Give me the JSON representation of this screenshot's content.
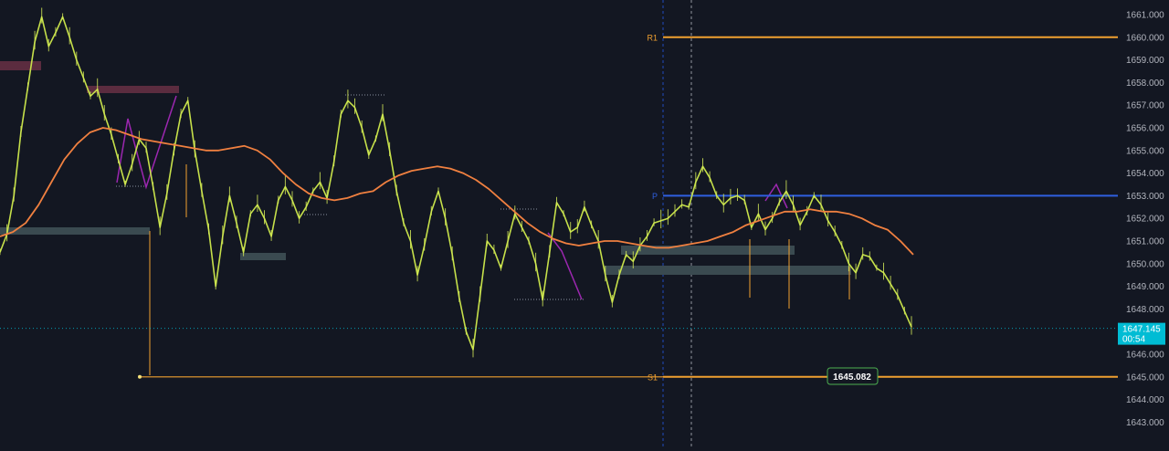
{
  "chart_data": {
    "type": "line",
    "title": "",
    "ylim": [
      1642.0,
      1661.4
    ],
    "y_ticks": [
      "1643.000",
      "1644.000",
      "1645.000",
      "1646.000",
      "1647.000",
      "1648.000",
      "1649.000",
      "1650.000",
      "1651.000",
      "1652.000",
      "1653.000",
      "1654.000",
      "1655.000",
      "1656.000",
      "1657.000",
      "1658.000",
      "1659.000",
      "1660.000",
      "1661.000"
    ],
    "grid": false,
    "levels": [
      {
        "label": "R1",
        "value": 1660.0,
        "color": "#f0a030"
      },
      {
        "label": "P",
        "value": 1653.0,
        "color": "#2f5fe0"
      },
      {
        "label": "S1",
        "value": 1645.0,
        "color": "#f0a030"
      }
    ],
    "s1_value_label": "1645.082",
    "last_price": {
      "value": 1647.145,
      "label": "1647.145",
      "countdown": "00:54",
      "color": "#00bcd4"
    },
    "series": [
      {
        "color": "#c6e04a",
        "values": [
          1650.5,
          1651.3,
          1653.0,
          1655.8,
          1657.8,
          1659.8,
          1660.9,
          1659.6,
          1660.2,
          1660.9,
          1660.0,
          1659.0,
          1658.2,
          1657.4,
          1657.7,
          1656.6,
          1655.7,
          1654.6,
          1653.5,
          1654.4,
          1655.5,
          1655.1,
          1653.4,
          1651.6,
          1653.1,
          1655.0,
          1656.6,
          1657.2,
          1655.0,
          1653.2,
          1651.5,
          1649.0,
          1651.2,
          1653.0,
          1651.8,
          1650.5,
          1652.2,
          1652.6,
          1652.0,
          1651.2,
          1652.8,
          1653.4,
          1652.8,
          1652.0,
          1652.5,
          1653.2,
          1653.6,
          1652.9,
          1654.5,
          1656.6,
          1657.2,
          1656.9,
          1656.0,
          1654.8,
          1655.5,
          1656.6,
          1655.0,
          1653.2,
          1651.8,
          1651.0,
          1649.5,
          1650.8,
          1652.3,
          1653.2,
          1652.0,
          1650.4,
          1648.5,
          1647.0,
          1646.2,
          1648.6,
          1651.0,
          1650.6,
          1649.8,
          1651.0,
          1652.2,
          1651.6,
          1651.0,
          1650.0,
          1648.4,
          1650.5,
          1652.7,
          1652.2,
          1651.4,
          1651.6,
          1652.5,
          1651.7,
          1651.0,
          1649.5,
          1648.3,
          1649.5,
          1650.4,
          1650.1,
          1650.8,
          1651.2,
          1651.8,
          1651.9,
          1652.0,
          1652.3,
          1652.6,
          1652.5,
          1653.6,
          1654.3,
          1653.8,
          1653.0,
          1652.6,
          1652.9,
          1653.0,
          1652.8,
          1651.6,
          1652.2,
          1651.5,
          1652.0,
          1652.7,
          1653.2,
          1652.6,
          1651.7,
          1652.3,
          1653.0,
          1652.6,
          1651.9,
          1651.4,
          1650.8,
          1650.0,
          1649.6,
          1650.4,
          1650.3,
          1649.8,
          1649.6,
          1649.1,
          1648.6,
          1647.9,
          1647.2
        ]
      },
      {
        "color": "#f08040",
        "values": [
          1651.2,
          1651.4,
          1651.8,
          1652.6,
          1653.6,
          1654.6,
          1655.3,
          1655.8,
          1656.0,
          1655.9,
          1655.7,
          1655.5,
          1655.4,
          1655.3,
          1655.2,
          1655.1,
          1655.0,
          1655.0,
          1655.1,
          1655.2,
          1655.0,
          1654.6,
          1654.0,
          1653.5,
          1653.1,
          1652.9,
          1652.8,
          1652.9,
          1653.1,
          1653.2,
          1653.6,
          1653.9,
          1654.1,
          1654.2,
          1654.3,
          1654.2,
          1654.0,
          1653.7,
          1653.3,
          1652.8,
          1652.3,
          1651.8,
          1651.4,
          1651.1,
          1650.9,
          1650.8,
          1650.9,
          1651.0,
          1651.0,
          1650.9,
          1650.8,
          1650.7,
          1650.7,
          1650.8,
          1650.9,
          1651.0,
          1651.2,
          1651.4,
          1651.7,
          1651.9,
          1652.1,
          1652.3,
          1652.3,
          1652.4,
          1652.3,
          1652.3,
          1652.2,
          1652.0,
          1651.7,
          1651.5,
          1651.0,
          1650.4
        ]
      }
    ]
  }
}
